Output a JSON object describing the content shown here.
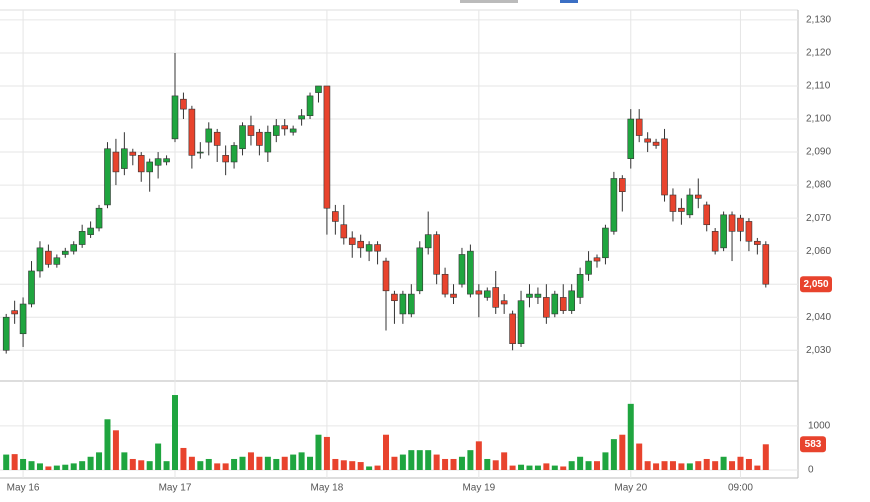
{
  "chart_data": {
    "type": "candlestick",
    "categories": [
      null,
      null,
      "May 16",
      null,
      null,
      null,
      null,
      null,
      null,
      null,
      null,
      null,
      null,
      null,
      null,
      null,
      null,
      null,
      null,
      null,
      "May 17",
      null,
      null,
      null,
      null,
      null,
      null,
      null,
      null,
      null,
      null,
      null,
      null,
      null,
      null,
      null,
      null,
      null,
      "May 18",
      null,
      null,
      null,
      null,
      null,
      null,
      null,
      null,
      null,
      null,
      null,
      null,
      null,
      null,
      null,
      null,
      null,
      "May 19",
      null,
      null,
      null,
      null,
      null,
      null,
      null,
      null,
      null,
      null,
      null,
      null,
      null,
      null,
      null,
      null,
      null,
      "May 20",
      null,
      null,
      null,
      null,
      null,
      null,
      null,
      null,
      null,
      null,
      null,
      null,
      "09:00",
      null,
      null,
      null
    ],
    "open": [
      2030,
      2042,
      2035,
      2044,
      2054,
      2060,
      2056,
      2059,
      2060,
      2062,
      2065,
      2067,
      2074,
      2090,
      2085,
      2090,
      2089,
      2084,
      2086,
      2087,
      2094,
      2106,
      2103,
      2090,
      2093,
      2096,
      2089,
      2087,
      2091,
      2098,
      2096,
      2090,
      2095,
      2098,
      2096,
      2100,
      2101,
      2108,
      2110,
      2072,
      2068,
      2064,
      2063,
      2060,
      2062,
      2057,
      2047,
      2041,
      2041,
      2048,
      2061,
      2065,
      2053,
      2047,
      2050,
      2047,
      2048,
      2046,
      2049,
      2045,
      2041,
      2032,
      2046,
      2046,
      2046,
      2041,
      2046,
      2042,
      2046,
      2053,
      2058,
      2058,
      2066,
      2082,
      2088,
      2100,
      2094,
      2093,
      2094,
      2077,
      2073,
      2071,
      2077,
      2074,
      2066,
      2061,
      2071,
      2070,
      2069,
      2063,
      2062
    ],
    "high": [
      2041,
      2045,
      2046,
      2057,
      2063,
      2062,
      2059,
      2061,
      2063,
      2068,
      2069,
      2074,
      2093,
      2094,
      2096,
      2091,
      2090,
      2088,
      2090,
      2089,
      2120,
      2108,
      2104,
      2093,
      2099,
      2097,
      2092,
      2093,
      2099,
      2101,
      2097,
      2098,
      2100,
      2100,
      2098,
      2103,
      2108,
      2110,
      2110,
      2074,
      2074,
      2066,
      2065,
      2063,
      2063,
      2058,
      2048,
      2048,
      2050,
      2063,
      2072,
      2066,
      2055,
      2050,
      2061,
      2062,
      2050,
      2049,
      2054,
      2047,
      2042,
      2048,
      2050,
      2049,
      2050,
      2048,
      2050,
      2050,
      2055,
      2060,
      2059,
      2068,
      2084,
      2083,
      2103,
      2103,
      2096,
      2094,
      2097,
      2079,
      2076,
      2079,
      2082,
      2075,
      2067,
      2072,
      2072,
      2071,
      2070,
      2064,
      2063
    ],
    "low": [
      2029,
      2038,
      2031,
      2043,
      2052,
      2055,
      2055,
      2058,
      2059,
      2061,
      2064,
      2066,
      2073,
      2080,
      2083,
      2086,
      2081,
      2078,
      2082,
      2086,
      2093,
      2100,
      2085,
      2088,
      2089,
      2087,
      2083,
      2085,
      2089,
      2092,
      2089,
      2087,
      2093,
      2095,
      2095,
      2098,
      2100,
      2105,
      2065,
      2065,
      2062,
      2058,
      2058,
      2057,
      2056,
      2036,
      2038,
      2038,
      2040,
      2047,
      2059,
      2050,
      2046,
      2044,
      2049,
      2046,
      2040,
      2045,
      2041,
      2041,
      2030,
      2031,
      2043,
      2044,
      2038,
      2040,
      2041,
      2041,
      2044,
      2051,
      2055,
      2056,
      2065,
      2072,
      2085,
      2093,
      2090,
      2091,
      2075,
      2069,
      2068,
      2070,
      2073,
      2066,
      2059,
      2060,
      2057,
      2063,
      2060,
      2059,
      2049
    ],
    "close": [
      2040,
      2041,
      2044,
      2054,
      2061,
      2056,
      2058,
      2060,
      2062,
      2066,
      2067,
      2073,
      2091,
      2084,
      2091,
      2089,
      2084,
      2087,
      2088,
      2088,
      2107,
      2103,
      2089,
      2090,
      2097,
      2092,
      2087,
      2092,
      2098,
      2095,
      2092,
      2096,
      2098,
      2097,
      2097,
      2101,
      2107,
      2110,
      2073,
      2069,
      2064,
      2062,
      2061,
      2062,
      2060,
      2048,
      2045,
      2047,
      2047,
      2061,
      2065,
      2053,
      2047,
      2046,
      2059,
      2060,
      2047,
      2048,
      2043,
      2044,
      2032,
      2045,
      2047,
      2047,
      2040,
      2047,
      2042,
      2048,
      2053,
      2057,
      2057,
      2067,
      2082,
      2078,
      2100,
      2095,
      2093,
      2092,
      2077,
      2072,
      2072,
      2077,
      2076,
      2068,
      2060,
      2071,
      2066,
      2066,
      2063,
      2062,
      2050
    ],
    "up_color": "#1fa53f",
    "down_color": "#e8432d",
    "ylim": [
      2021,
      2133
    ],
    "yticks": [
      {
        "value": 2030,
        "label": "2,030"
      },
      {
        "value": 2040,
        "label": "2,040"
      },
      {
        "value": 2050,
        "label": "2,050"
      },
      {
        "value": 2060,
        "label": "2,060"
      },
      {
        "value": 2070,
        "label": "2,070"
      },
      {
        "value": 2080,
        "label": "2,080"
      },
      {
        "value": 2090,
        "label": "2,090"
      },
      {
        "value": 2100,
        "label": "2,100"
      },
      {
        "value": 2110,
        "label": "2,110"
      },
      {
        "value": 2120,
        "label": "2,120"
      },
      {
        "value": 2130,
        "label": "2,130"
      }
    ],
    "last_price": {
      "value": 2050,
      "label": "2,050"
    },
    "grid": true,
    "volume": {
      "values": [
        350,
        360,
        250,
        200,
        150,
        80,
        100,
        120,
        150,
        200,
        300,
        400,
        1150,
        900,
        400,
        250,
        220,
        200,
        600,
        200,
        1700,
        500,
        300,
        200,
        250,
        150,
        150,
        250,
        300,
        400,
        300,
        300,
        250,
        300,
        350,
        400,
        300,
        800,
        750,
        250,
        220,
        200,
        180,
        80,
        100,
        800,
        300,
        350,
        450,
        450,
        450,
        350,
        250,
        250,
        300,
        450,
        650,
        250,
        220,
        400,
        100,
        120,
        100,
        100,
        150,
        100,
        80,
        200,
        300,
        200,
        200,
        400,
        700,
        800,
        1500,
        600,
        200,
        150,
        200,
        200,
        150,
        150,
        200,
        250,
        200,
        300,
        200,
        300,
        250,
        100,
        583
      ],
      "ylim": [
        0,
        1950
      ],
      "yticks": [
        0,
        1000
      ]
    }
  }
}
